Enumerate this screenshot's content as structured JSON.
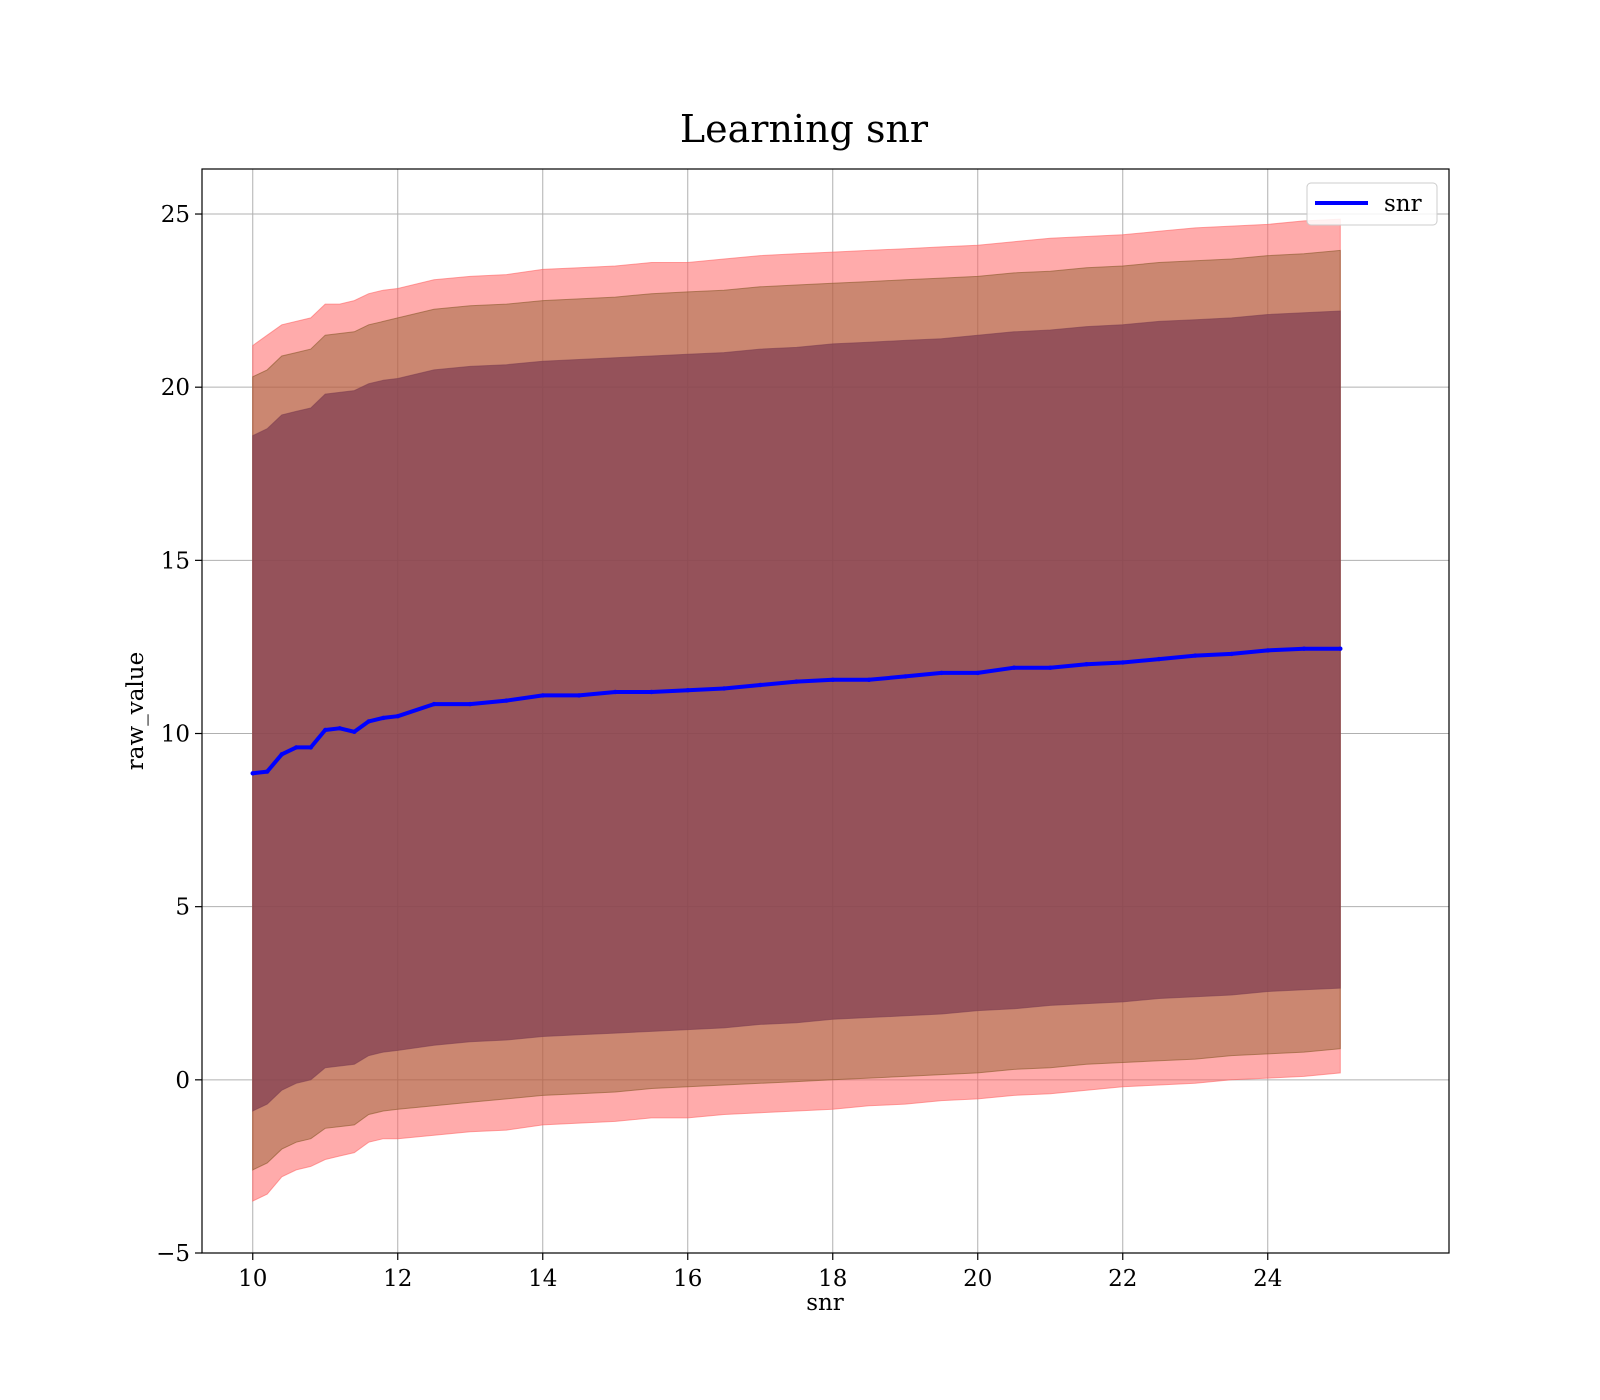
{
  "chart_data": {
    "type": "line",
    "title": "Learning snr",
    "xlabel": "snr",
    "ylabel": "raw_value",
    "xlim": [
      9.3,
      26.5
    ],
    "ylim": [
      -5,
      26.3
    ],
    "xticks": [
      10,
      12,
      14,
      16,
      18,
      20,
      22,
      24
    ],
    "xtick_labels": [
      "10",
      "12",
      "14",
      "16",
      "18",
      "20",
      "22",
      "24"
    ],
    "yticks": [
      -5,
      0,
      5,
      10,
      15,
      20,
      25
    ],
    "ytick_labels": [
      "−5",
      "0",
      "5",
      "10",
      "15",
      "20",
      "25"
    ],
    "grid": true,
    "legend": {
      "position": "top-right",
      "entries": [
        "snr"
      ]
    },
    "series": [
      {
        "name": "snr",
        "color": "#0000ff",
        "x": [
          10.0,
          10.2,
          10.4,
          10.6,
          10.8,
          11.0,
          11.2,
          11.4,
          11.6,
          11.8,
          12.0,
          12.5,
          13.0,
          13.5,
          14.0,
          14.5,
          15.0,
          15.5,
          16.0,
          16.5,
          17.0,
          17.5,
          18.0,
          18.5,
          19.0,
          19.5,
          20.0,
          20.5,
          21.0,
          21.5,
          22.0,
          22.5,
          23.0,
          23.5,
          24.0,
          24.5,
          25.0
        ],
        "y": [
          8.85,
          8.9,
          9.4,
          9.6,
          9.6,
          10.1,
          10.15,
          10.05,
          10.35,
          10.45,
          10.5,
          10.85,
          10.85,
          10.95,
          11.1,
          11.1,
          11.2,
          11.2,
          11.25,
          11.3,
          11.4,
          11.5,
          11.55,
          11.55,
          11.65,
          11.75,
          11.75,
          11.9,
          11.9,
          12.0,
          12.05,
          12.15,
          12.25,
          12.3,
          12.4,
          12.45,
          12.45
        ]
      }
    ],
    "bands": [
      {
        "color": "#ff6666",
        "opacity": 0.55,
        "x": [
          10.0,
          10.2,
          10.4,
          10.6,
          10.8,
          11.0,
          11.2,
          11.4,
          11.6,
          11.8,
          12.0,
          12.5,
          13.0,
          13.5,
          14.0,
          14.5,
          15.0,
          15.5,
          16.0,
          16.5,
          17.0,
          17.5,
          18.0,
          18.5,
          19.0,
          19.5,
          20.0,
          20.5,
          21.0,
          21.5,
          22.0,
          22.5,
          23.0,
          23.5,
          24.0,
          24.5,
          25.0
        ],
        "upper": [
          21.2,
          21.5,
          21.8,
          21.9,
          22.0,
          22.4,
          22.4,
          22.5,
          22.7,
          22.8,
          22.85,
          23.1,
          23.2,
          23.25,
          23.4,
          23.45,
          23.5,
          23.6,
          23.6,
          23.7,
          23.8,
          23.85,
          23.9,
          23.95,
          24.0,
          24.05,
          24.1,
          24.2,
          24.3,
          24.35,
          24.4,
          24.5,
          24.6,
          24.65,
          24.7,
          24.8,
          24.85
        ],
        "lower": [
          -3.5,
          -3.3,
          -2.8,
          -2.6,
          -2.5,
          -2.3,
          -2.2,
          -2.1,
          -1.8,
          -1.7,
          -1.7,
          -1.6,
          -1.5,
          -1.45,
          -1.3,
          -1.25,
          -1.2,
          -1.1,
          -1.1,
          -1.0,
          -0.95,
          -0.9,
          -0.85,
          -0.75,
          -0.7,
          -0.6,
          -0.55,
          -0.45,
          -0.4,
          -0.3,
          -0.2,
          -0.15,
          -0.1,
          0.0,
          0.05,
          0.1,
          0.2
        ]
      },
      {
        "color": "#8b5a2b",
        "opacity": 0.45,
        "x": [
          10.0,
          10.2,
          10.4,
          10.6,
          10.8,
          11.0,
          11.2,
          11.4,
          11.6,
          11.8,
          12.0,
          12.5,
          13.0,
          13.5,
          14.0,
          14.5,
          15.0,
          15.5,
          16.0,
          16.5,
          17.0,
          17.5,
          18.0,
          18.5,
          19.0,
          19.5,
          20.0,
          20.5,
          21.0,
          21.5,
          22.0,
          22.5,
          23.0,
          23.5,
          24.0,
          24.5,
          25.0
        ],
        "upper": [
          20.3,
          20.5,
          20.9,
          21.0,
          21.1,
          21.5,
          21.55,
          21.6,
          21.8,
          21.9,
          22.0,
          22.25,
          22.35,
          22.4,
          22.5,
          22.55,
          22.6,
          22.7,
          22.75,
          22.8,
          22.9,
          22.95,
          23.0,
          23.05,
          23.1,
          23.15,
          23.2,
          23.3,
          23.35,
          23.45,
          23.5,
          23.6,
          23.65,
          23.7,
          23.8,
          23.85,
          23.95
        ],
        "lower": [
          -2.6,
          -2.4,
          -2.0,
          -1.8,
          -1.7,
          -1.4,
          -1.35,
          -1.3,
          -1.0,
          -0.9,
          -0.85,
          -0.75,
          -0.65,
          -0.55,
          -0.45,
          -0.4,
          -0.35,
          -0.25,
          -0.2,
          -0.15,
          -0.1,
          -0.05,
          0.0,
          0.05,
          0.1,
          0.15,
          0.2,
          0.3,
          0.35,
          0.45,
          0.5,
          0.55,
          0.6,
          0.7,
          0.75,
          0.8,
          0.9
        ]
      },
      {
        "color": "#7f3f52",
        "opacity": 0.72,
        "x": [
          10.0,
          10.2,
          10.4,
          10.6,
          10.8,
          11.0,
          11.2,
          11.4,
          11.6,
          11.8,
          12.0,
          12.5,
          13.0,
          13.5,
          14.0,
          14.5,
          15.0,
          15.5,
          16.0,
          16.5,
          17.0,
          17.5,
          18.0,
          18.5,
          19.0,
          19.5,
          20.0,
          20.5,
          21.0,
          21.5,
          22.0,
          22.5,
          23.0,
          23.5,
          24.0,
          24.5,
          25.0
        ],
        "upper": [
          18.6,
          18.8,
          19.2,
          19.3,
          19.4,
          19.8,
          19.85,
          19.9,
          20.1,
          20.2,
          20.25,
          20.5,
          20.6,
          20.65,
          20.75,
          20.8,
          20.85,
          20.9,
          20.95,
          21.0,
          21.1,
          21.15,
          21.25,
          21.3,
          21.35,
          21.4,
          21.5,
          21.6,
          21.65,
          21.75,
          21.8,
          21.9,
          21.95,
          22.0,
          22.1,
          22.15,
          22.2
        ],
        "lower": [
          -0.9,
          -0.7,
          -0.3,
          -0.1,
          0.0,
          0.35,
          0.4,
          0.45,
          0.7,
          0.8,
          0.85,
          1.0,
          1.1,
          1.15,
          1.25,
          1.3,
          1.35,
          1.4,
          1.45,
          1.5,
          1.6,
          1.65,
          1.75,
          1.8,
          1.85,
          1.9,
          2.0,
          2.05,
          2.15,
          2.2,
          2.25,
          2.35,
          2.4,
          2.45,
          2.55,
          2.6,
          2.65
        ]
      }
    ]
  }
}
